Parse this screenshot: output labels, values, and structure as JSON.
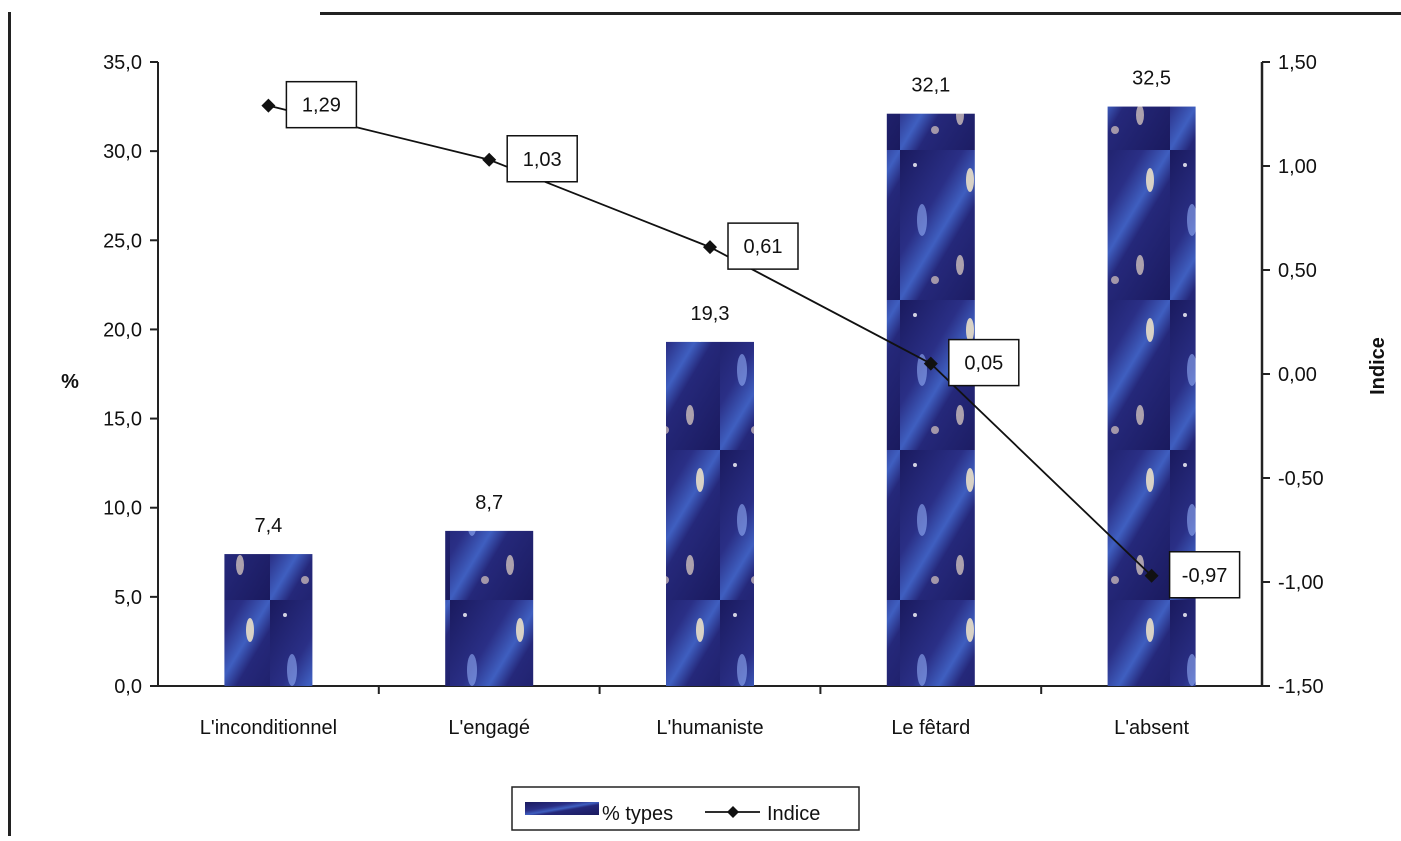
{
  "chart_data": {
    "type": "bar",
    "categories": [
      "L'inconditionnel",
      "L'engagé",
      "L'humaniste",
      "Le fêtard",
      "L'absent"
    ],
    "series": [
      {
        "name": "% types",
        "type": "bar",
        "axis": "left",
        "values": [
          7.4,
          8.7,
          19.3,
          32.1,
          32.5
        ],
        "labels": [
          "7,4",
          "8,7",
          "19,3",
          "32,1",
          "32,5"
        ]
      },
      {
        "name": "Indice",
        "type": "line",
        "axis": "right",
        "values": [
          1.29,
          1.03,
          0.61,
          0.05,
          -0.97
        ],
        "labels": [
          "1,29",
          "1,03",
          "0,61",
          "0,05",
          "-0,97"
        ]
      }
    ],
    "ylabel": "%",
    "y2label": "Indice",
    "ylim": [
      0,
      35
    ],
    "y2lim": [
      -1.5,
      1.5
    ],
    "yticks": [
      "0,0",
      "5,0",
      "10,0",
      "15,0",
      "20,0",
      "25,0",
      "30,0",
      "35,0"
    ],
    "y2ticks": [
      "-1,50",
      "-1,00",
      "-0,50",
      "0,00",
      "0,50",
      "1,00",
      "1,50"
    ],
    "legend_position": "bottom",
    "grid": false,
    "colors": {
      "bar": "#1f1f6b",
      "bar_highlight": "#6a8fe0",
      "line": "#111111"
    }
  }
}
